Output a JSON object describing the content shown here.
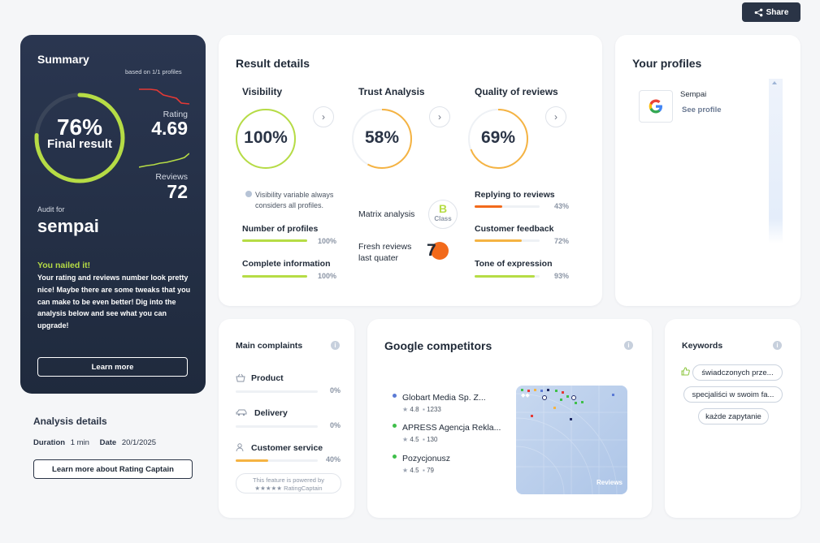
{
  "share": {
    "label": "Share"
  },
  "summary": {
    "title": "Summary",
    "based_on": "based on 1/1 profiles",
    "final_percent": "76%",
    "final_label": "Final result",
    "final_value": 0.76,
    "rating_label": "Rating",
    "rating_value": "4.69",
    "reviews_label": "Reviews",
    "reviews_value": "72",
    "audit_for_label": "Audit for",
    "audit_name": "sempai",
    "nailed_title": "You nailed it!",
    "description": "Your rating and reviews number look pretty nice! Maybe there are some tweaks that you can make to be even better! Dig into the analysis below and see what you can upgrade!",
    "learn_more": "Learn more",
    "colors": {
      "accent_green": "#b6dc45",
      "accent_red": "#e53935"
    }
  },
  "analysis": {
    "title": "Analysis details",
    "duration_label": "Duration",
    "duration_value": "1 min",
    "date_label": "Date",
    "date_value": "20/1/2025",
    "rc_button": "Learn more about Rating Captain"
  },
  "result": {
    "title": "Result details",
    "visibility": {
      "title": "Visibility",
      "percent": "100%",
      "value": 1.0,
      "note": "Visibility variable always considers all profiles.",
      "items": [
        {
          "label": "Number of profiles",
          "value": "100%",
          "fill": 1.0
        },
        {
          "label": "Complete information",
          "value": "100%",
          "fill": 1.0
        }
      ]
    },
    "trust": {
      "title": "Trust Analysis",
      "percent": "58%",
      "value": 0.58,
      "matrix_label": "Matrix analysis",
      "matrix_grade": "B",
      "matrix_class": "Class",
      "fresh_label": "Fresh reviews last quater",
      "fresh_value": "7"
    },
    "quality": {
      "title": "Quality of reviews",
      "percent": "69%",
      "value": 0.69,
      "items": [
        {
          "label": "Replying to reviews",
          "value": "43%",
          "fill": 0.43,
          "color": "#f26a1b"
        },
        {
          "label": "Customer feedback",
          "value": "72%",
          "fill": 0.72,
          "color": "#f5b342"
        },
        {
          "label": "Tone of expression",
          "value": "93%",
          "fill": 0.93,
          "color": "#b6dc45"
        }
      ]
    }
  },
  "profiles": {
    "title": "Your profiles",
    "items": [
      {
        "name": "Sempai",
        "link": "See profile",
        "icon": "google-g-icon"
      }
    ]
  },
  "complaints": {
    "title": "Main complaints",
    "items": [
      {
        "label": "Product",
        "value": "0%",
        "fill": 0,
        "icon": "basket-icon"
      },
      {
        "label": "Delivery",
        "value": "0%",
        "fill": 0,
        "icon": "car-icon"
      },
      {
        "label": "Customer service",
        "value": "40%",
        "fill": 0.4,
        "icon": "person-icon"
      }
    ],
    "powered_line1": "This feature is powered by",
    "powered_line2": "★★★★★ RatingCaptain"
  },
  "competitors": {
    "title": "Google competitors",
    "items": [
      {
        "name": "Globart Media Sp. Z...",
        "rating": "4.8",
        "reviews": "1233",
        "dot": "#5b7bd5"
      },
      {
        "name": "APRESS Agencja Rekla...",
        "rating": "4.5",
        "reviews": "130",
        "dot": "#3fbf4a"
      },
      {
        "name": "Pozycjonusz",
        "rating": "4.5",
        "reviews": "79",
        "dot": "#3fbf4a"
      }
    ],
    "map_label": "Reviews"
  },
  "keywords": {
    "title": "Keywords",
    "items": [
      "świadczonych prze...",
      "specjaliści w swoim fa...",
      "każde zapytanie"
    ]
  }
}
